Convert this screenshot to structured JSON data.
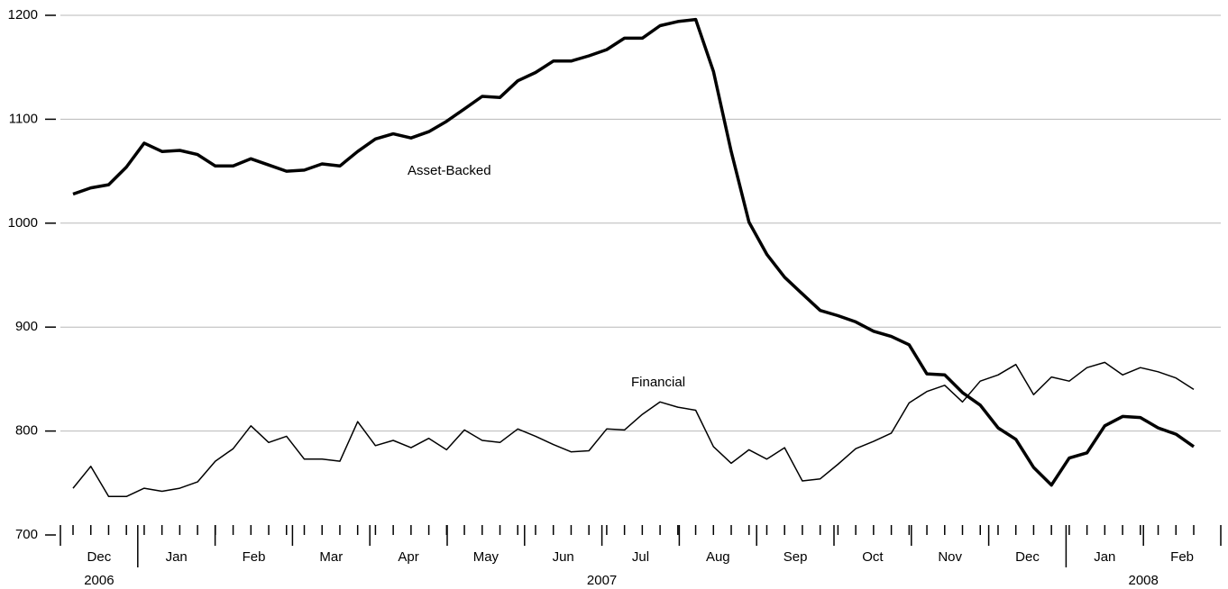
{
  "chart_data": {
    "type": "line",
    "months": [
      "Dec",
      "Jan",
      "Feb",
      "Mar",
      "Apr",
      "May",
      "Jun",
      "Jul",
      "Aug",
      "Sep",
      "Oct",
      "Nov",
      "Dec",
      "Jan",
      "Feb"
    ],
    "years": [
      "2006",
      "2007",
      "2008"
    ],
    "series": [
      {
        "name": "Asset-Backed",
        "color": "#000000",
        "width": 3.5,
        "values": [
          1028,
          1034,
          1037,
          1054,
          1077,
          1069,
          1070,
          1066,
          1055,
          1055,
          1062,
          1056,
          1050,
          1051,
          1057,
          1055,
          1069,
          1081,
          1086,
          1082,
          1088,
          1098,
          1110,
          1122,
          1121,
          1137,
          1145,
          1156,
          1156,
          1161,
          1167,
          1178,
          1178,
          1190,
          1194,
          1196,
          1146,
          1069,
          1001,
          970,
          948,
          932,
          916,
          911,
          905,
          896,
          891,
          883,
          855,
          854,
          837,
          825,
          803,
          792,
          765,
          748,
          774,
          779,
          805,
          814,
          813,
          803,
          797,
          785
        ]
      },
      {
        "name": "Financial",
        "color": "#000000",
        "width": 1.5,
        "values": [
          745,
          766,
          737,
          737,
          745,
          742,
          745,
          751,
          771,
          783,
          805,
          789,
          795,
          773,
          773,
          771,
          809,
          786,
          791,
          784,
          793,
          782,
          801,
          791,
          789,
          802,
          795,
          787,
          780,
          781,
          802,
          801,
          816,
          828,
          823,
          820,
          785,
          769,
          782,
          773,
          784,
          752,
          754,
          768,
          783,
          790,
          798,
          827,
          838,
          844,
          828,
          848,
          854,
          864,
          835,
          852,
          848,
          861,
          866,
          854,
          861,
          857,
          851,
          840
        ]
      }
    ],
    "ylim": [
      700,
      1200
    ],
    "yticks": [
      700,
      800,
      900,
      1000,
      1100,
      1200
    ],
    "grid": true
  }
}
